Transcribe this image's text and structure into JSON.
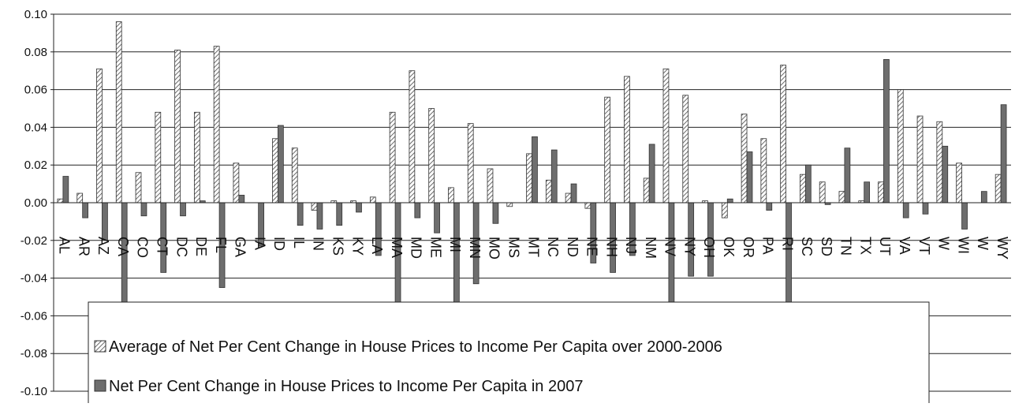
{
  "chart_data": {
    "type": "bar",
    "categories": [
      "AL",
      "AR",
      "AZ",
      "CA",
      "CO",
      "CT",
      "DC",
      "DE",
      "FL",
      "GA",
      "IA",
      "ID",
      "IL",
      "IN",
      "KS",
      "KY",
      "LA",
      "MA",
      "MD",
      "ME",
      "MI",
      "MN",
      "MO",
      "MS",
      "MT",
      "NC",
      "ND",
      "NE",
      "NH",
      "NJ",
      "NM",
      "NV",
      "NY",
      "OH",
      "OK",
      "OR",
      "PA",
      "RI",
      "SC",
      "SD",
      "TN",
      "TX",
      "UT",
      "VA",
      "VT",
      "W",
      "WI",
      "W",
      "WY"
    ],
    "series": [
      {
        "name": "Average of Net Per Cent Change in House Prices to Income Per Capita over 2000-2006",
        "color": "#6a6a6a",
        "pattern": "diagonal",
        "values": [
          0.002,
          0.005,
          0.071,
          0.096,
          0.016,
          0.048,
          0.081,
          0.048,
          0.083,
          0.021,
          0.0,
          0.034,
          0.029,
          -0.004,
          0.001,
          0.001,
          0.003,
          0.048,
          0.07,
          0.05,
          0.008,
          0.042,
          0.018,
          -0.002,
          0.026,
          0.012,
          0.005,
          -0.003,
          0.056,
          0.067,
          0.013,
          0.071,
          0.057,
          0.001,
          -0.008,
          0.047,
          0.034,
          0.073,
          0.015,
          0.011,
          0.006,
          0.001,
          0.011,
          0.06,
          0.046,
          0.043,
          0.021,
          0.0,
          0.015
        ]
      },
      {
        "name": "Net Per Cent Change in House Prices to Income Per Capita in 2007",
        "color": "#6e6e6e",
        "pattern": "solid",
        "values": [
          0.014,
          -0.008,
          -0.02,
          -0.072,
          -0.007,
          -0.037,
          -0.007,
          0.001,
          -0.045,
          0.004,
          -0.023,
          0.041,
          -0.012,
          -0.014,
          -0.012,
          -0.005,
          -0.028,
          -0.068,
          -0.008,
          -0.016,
          -0.062,
          -0.043,
          -0.011,
          0.0,
          0.035,
          0.028,
          0.01,
          -0.032,
          -0.037,
          -0.028,
          0.031,
          -0.057,
          -0.039,
          -0.039,
          0.002,
          0.027,
          -0.004,
          -0.058,
          0.02,
          -0.001,
          0.029,
          0.011,
          0.076,
          -0.008,
          -0.006,
          0.03,
          -0.014,
          0.006,
          0.052
        ]
      }
    ],
    "ylim": [
      -0.1,
      0.1
    ],
    "yticks": [
      {
        "value": -0.1,
        "label": "-0.10"
      },
      {
        "value": -0.08,
        "label": "-0.08"
      },
      {
        "value": -0.06,
        "label": "-0.06"
      },
      {
        "value": -0.04,
        "label": "-0.04"
      },
      {
        "value": -0.02,
        "label": "-0.02"
      },
      {
        "value": 0,
        "label": "0.00"
      },
      {
        "value": 0.02,
        "label": "0.02"
      },
      {
        "value": 0.04,
        "label": "0.04"
      },
      {
        "value": 0.06,
        "label": "0.06"
      },
      {
        "value": 0.08,
        "label": "0.08"
      },
      {
        "value": 0.1,
        "label": "0.10"
      }
    ],
    "grid": true,
    "legend": "bottom"
  }
}
